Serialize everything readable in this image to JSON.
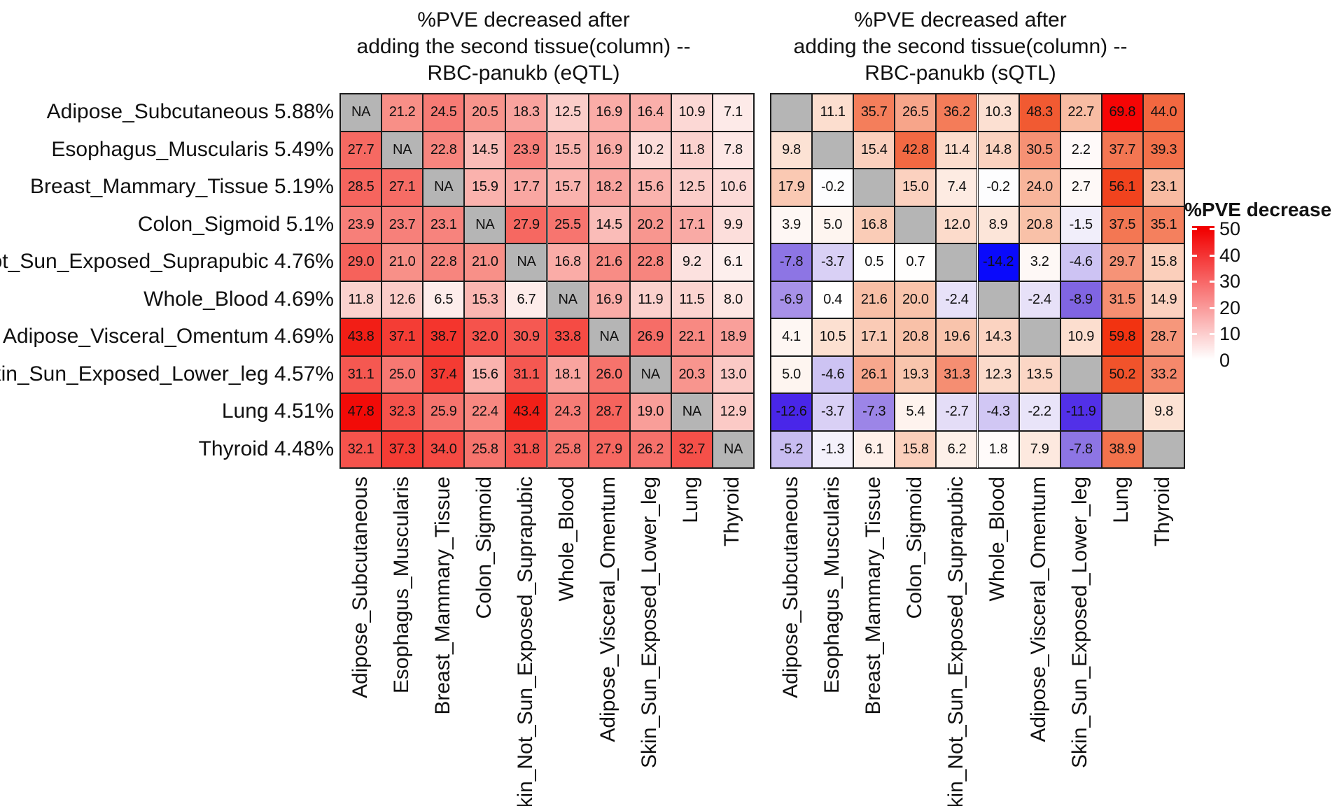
{
  "chart_data": {
    "type": "heatmap",
    "row_labels": [
      {
        "label": "Adipose_Subcutaneous",
        "pct": "5.88%"
      },
      {
        "label": "Esophagus_Muscularis",
        "pct": "5.49%"
      },
      {
        "label": "Breast_Mammary_Tissue",
        "pct": "5.19%"
      },
      {
        "label": "Colon_Sigmoid",
        "pct": "5.1%"
      },
      {
        "label": "Skin_Not_Sun_Exposed_Suprapubic",
        "pct": "4.76%"
      },
      {
        "label": "Whole_Blood",
        "pct": "4.69%"
      },
      {
        "label": "Adipose_Visceral_Omentum",
        "pct": "4.69%"
      },
      {
        "label": "Skin_Sun_Exposed_Lower_leg",
        "pct": "4.57%"
      },
      {
        "label": "Lung",
        "pct": "4.51%"
      },
      {
        "label": "Thyroid",
        "pct": "4.48%"
      }
    ],
    "column_labels": [
      "Adipose_Subcutaneous",
      "Esophagus_Muscularis",
      "Breast_Mammary_Tissue",
      "Colon_Sigmoid",
      "Skin_Not_Sun_Exposed_Suprapubic",
      "Whole_Blood",
      "Adipose_Visceral_Omentum",
      "Skin_Sun_Exposed_Lower_leg",
      "Lung",
      "Thyroid"
    ],
    "panels": [
      {
        "title": "%PVE decreased after\nadding the second tissue(column) --\nRBC-panukb (eQTL)",
        "qtl_type": "eQTL",
        "na_cell_text": "NA",
        "scale_max": 50,
        "neg_scale_min": -14.2,
        "pos_ramp": "ramp_red_eqtl",
        "neg_ramp": "ramp_blue_sqtl",
        "values": [
          [
            "NA",
            21.2,
            24.5,
            20.5,
            18.3,
            12.5,
            16.9,
            16.4,
            10.9,
            7.1
          ],
          [
            27.7,
            "NA",
            22.8,
            14.5,
            23.9,
            15.5,
            16.9,
            10.2,
            11.8,
            7.8
          ],
          [
            28.5,
            27.1,
            "NA",
            15.9,
            17.7,
            15.7,
            18.2,
            15.6,
            12.5,
            10.6
          ],
          [
            23.9,
            23.7,
            23.1,
            "NA",
            27.9,
            25.5,
            14.5,
            20.2,
            17.1,
            9.9
          ],
          [
            29.0,
            21.0,
            22.8,
            21.0,
            "NA",
            16.8,
            21.6,
            22.8,
            9.2,
            6.1
          ],
          [
            11.8,
            12.6,
            6.5,
            15.3,
            6.7,
            "NA",
            16.9,
            11.9,
            11.5,
            8.0
          ],
          [
            43.8,
            37.1,
            38.7,
            32.0,
            30.9,
            33.8,
            "NA",
            26.9,
            22.1,
            18.9
          ],
          [
            31.1,
            25.0,
            37.4,
            15.6,
            31.1,
            18.1,
            26.0,
            "NA",
            20.3,
            13.0
          ],
          [
            47.8,
            32.3,
            25.9,
            22.4,
            43.4,
            24.3,
            28.7,
            19.0,
            "NA",
            12.9
          ],
          [
            32.1,
            37.3,
            34.0,
            25.8,
            31.8,
            25.8,
            27.9,
            26.2,
            32.7,
            "NA"
          ]
        ]
      },
      {
        "title": "%PVE decreased after\nadding the second tissue(column) --\nRBC-panukb (sQTL)",
        "qtl_type": "sQTL",
        "na_cell_text": "",
        "scale_max": 69.8,
        "neg_scale_min": -14.2,
        "pos_ramp": "ramp_red_sqtl",
        "neg_ramp": "ramp_blue_sqtl",
        "values": [
          [
            null,
            11.1,
            35.7,
            26.5,
            36.2,
            10.3,
            48.3,
            22.7,
            69.8,
            44.0
          ],
          [
            9.8,
            null,
            15.4,
            42.8,
            11.4,
            14.8,
            30.5,
            2.2,
            37.7,
            39.3
          ],
          [
            17.9,
            -0.2,
            null,
            15.0,
            7.4,
            -0.2,
            24.0,
            2.7,
            56.1,
            23.1
          ],
          [
            3.9,
            5.0,
            16.8,
            null,
            12.0,
            8.9,
            20.8,
            -1.5,
            37.5,
            35.1
          ],
          [
            -7.8,
            -3.7,
            0.5,
            0.7,
            null,
            -14.2,
            3.2,
            -4.6,
            29.7,
            15.8
          ],
          [
            -6.9,
            0.4,
            21.6,
            20.0,
            -2.4,
            null,
            -2.4,
            -8.9,
            31.5,
            14.9
          ],
          [
            4.1,
            10.5,
            17.1,
            20.8,
            19.6,
            14.3,
            null,
            10.9,
            59.8,
            28.7
          ],
          [
            5.0,
            -4.6,
            26.1,
            19.3,
            31.3,
            12.3,
            13.5,
            null,
            50.2,
            33.2
          ],
          [
            -12.6,
            -3.7,
            -7.3,
            5.4,
            -2.7,
            -4.3,
            -2.2,
            -11.9,
            null,
            9.8
          ],
          [
            -5.2,
            -1.3,
            6.1,
            15.8,
            6.2,
            1.8,
            7.9,
            -7.8,
            38.9,
            null
          ]
        ]
      }
    ],
    "legend": {
      "title": "%PVE decrease",
      "ticks": [
        50,
        40,
        30,
        20,
        10,
        0
      ],
      "top_color": "#F20000",
      "bottom_color": "#FFFFFF"
    }
  },
  "colors": {
    "background": "#FFFFFF",
    "na_cell": "#B5B5B5",
    "grid_line": "#1c1c1c",
    "text": "#111111",
    "ramp_red_eqtl": [
      [
        0,
        "#FFFFFF"
      ],
      [
        0.12,
        "#FDEFED"
      ],
      [
        0.2,
        "#FCDEDB"
      ],
      [
        0.25,
        "#FBCDC9"
      ],
      [
        0.31,
        "#FAB4AF"
      ],
      [
        0.37,
        "#F9A29D"
      ],
      [
        0.42,
        "#F89088"
      ],
      [
        0.48,
        "#F77E78"
      ],
      [
        0.55,
        "#F66A63"
      ],
      [
        0.64,
        "#F5534C"
      ],
      [
        0.75,
        "#F43B33"
      ],
      [
        0.88,
        "#F21D15"
      ],
      [
        1,
        "#F20000"
      ]
    ],
    "ramp_red_sqtl": [
      [
        0,
        "#FFFFFF"
      ],
      [
        0.07,
        "#FEF5F1"
      ],
      [
        0.14,
        "#FCE2D4"
      ],
      [
        0.21,
        "#FBD2C0"
      ],
      [
        0.28,
        "#F9C4AC"
      ],
      [
        0.33,
        "#F8BBA2"
      ],
      [
        0.41,
        "#F6977B"
      ],
      [
        0.48,
        "#F5876A"
      ],
      [
        0.5,
        "#F4815F"
      ],
      [
        0.56,
        "#F3714B"
      ],
      [
        0.63,
        "#F26740"
      ],
      [
        0.69,
        "#F15B33"
      ],
      [
        0.72,
        "#F1532B"
      ],
      [
        0.8,
        "#F1441F"
      ],
      [
        0.86,
        "#F23210"
      ],
      [
        1,
        "#F60505"
      ]
    ],
    "ramp_blue_sqtl": [
      [
        0,
        "#FFFFFF"
      ],
      [
        0.09,
        "#F4F1FB"
      ],
      [
        0.17,
        "#E7E1F8"
      ],
      [
        0.26,
        "#D9D0F5"
      ],
      [
        0.32,
        "#CEC4F3"
      ],
      [
        0.37,
        "#C7BBF1"
      ],
      [
        0.49,
        "#A690E9"
      ],
      [
        0.55,
        "#8D75E4"
      ],
      [
        0.63,
        "#7F64E2"
      ],
      [
        0.84,
        "#5230E8"
      ],
      [
        0.89,
        "#4825E9"
      ],
      [
        1,
        "#0A0AFB"
      ]
    ]
  }
}
